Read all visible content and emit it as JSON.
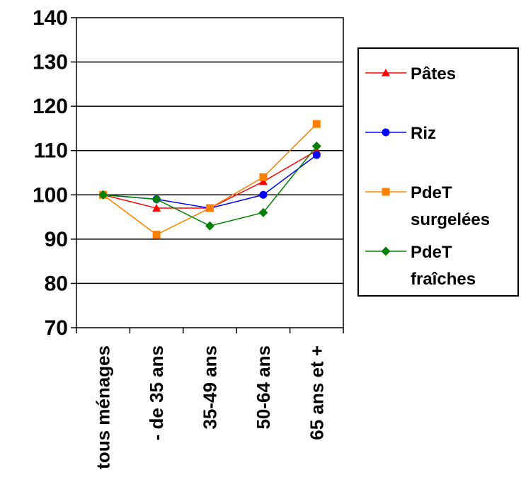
{
  "chart_data": {
    "type": "line",
    "title": "",
    "xlabel": "",
    "ylabel": "",
    "ylim": [
      70,
      140
    ],
    "yticks": [
      70,
      80,
      90,
      100,
      110,
      120,
      130,
      140
    ],
    "grid": true,
    "legend_position": "right",
    "categories": [
      "tous ménages",
      "- de 35 ans",
      "35-49 ans",
      "50-64 ans",
      "65 ans et +"
    ],
    "series": [
      {
        "name": "Pâtes",
        "legend_lines": [
          "Pâtes"
        ],
        "color": "#ff0000",
        "marker": "triangle",
        "values": [
          100,
          97,
          97,
          103,
          110
        ]
      },
      {
        "name": "Riz",
        "legend_lines": [
          "Riz"
        ],
        "color": "#0000ff",
        "marker": "circle",
        "values": [
          100,
          99,
          97,
          100,
          109
        ]
      },
      {
        "name": "PdeT surgelées",
        "legend_lines": [
          "PdeT",
          "surgelées"
        ],
        "color": "#ff8000",
        "marker": "square",
        "values": [
          100,
          91,
          97,
          104,
          116
        ]
      },
      {
        "name": "PdeT fraîches",
        "legend_lines": [
          "PdeT",
          "fraîches"
        ],
        "color": "#008000",
        "marker": "diamond",
        "values": [
          100,
          99,
          93,
          96,
          111
        ]
      }
    ]
  }
}
